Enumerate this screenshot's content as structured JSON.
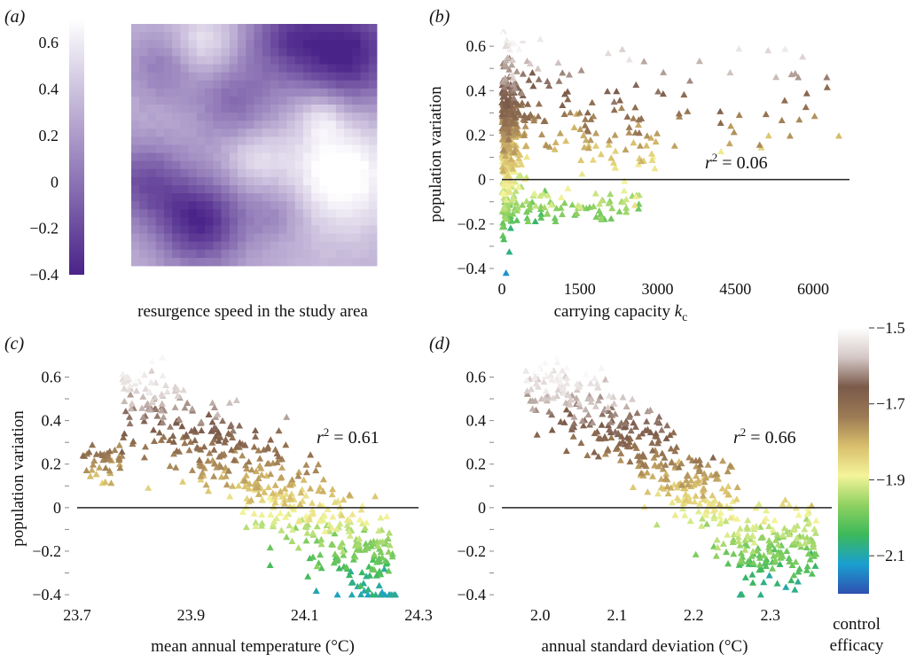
{
  "chart_data": [
    {
      "panel": "a",
      "panel_label": "(a)",
      "type": "heatmap",
      "xlabel": "resurgence speed in the study area",
      "colorbar": {
        "ticks": [
          "0.6",
          "0.4",
          "0.2",
          "0",
          "−0.2",
          "−0.4"
        ],
        "tick_values": [
          0.6,
          0.4,
          0.2,
          0,
          -0.2,
          -0.4
        ],
        "range": [
          -0.4,
          0.7
        ],
        "colors": [
          "#4a2389",
          "#ffffff"
        ]
      },
      "grid_size": 30,
      "centers": [
        {
          "cx": 0.88,
          "cy": 0.12,
          "s": 0.16,
          "v": -0.95
        },
        {
          "cx": 0.62,
          "cy": 0.05,
          "s": 0.12,
          "v": -0.55
        },
        {
          "cx": 0.28,
          "cy": 0.82,
          "s": 0.13,
          "v": -0.9
        },
        {
          "cx": 0.05,
          "cy": 0.65,
          "s": 0.12,
          "v": -0.6
        },
        {
          "cx": 0.42,
          "cy": 0.32,
          "s": 0.12,
          "v": -0.45
        },
        {
          "cx": 0.12,
          "cy": 0.18,
          "s": 0.1,
          "v": -0.35
        },
        {
          "cx": 0.6,
          "cy": 0.78,
          "s": 0.09,
          "v": -0.3
        },
        {
          "cx": 0.85,
          "cy": 0.62,
          "s": 0.16,
          "v": 0.6
        },
        {
          "cx": 0.78,
          "cy": 0.38,
          "s": 0.07,
          "v": 0.35
        },
        {
          "cx": 0.3,
          "cy": 0.08,
          "s": 0.09,
          "v": 0.35
        },
        {
          "cx": 0.5,
          "cy": 0.55,
          "s": 0.08,
          "v": 0.3
        }
      ]
    },
    {
      "panel": "b",
      "panel_label": "(b)",
      "type": "scatter",
      "xlabel": "carrying capacity",
      "xlabel_var": "k",
      "xlabel_sub": "c",
      "ylabel": "population variation",
      "xlim": [
        0,
        6700
      ],
      "ylim": [
        -0.42,
        0.72
      ],
      "xticks": [
        0,
        1500,
        3000,
        4500,
        6000
      ],
      "yticks": [
        -0.4,
        -0.2,
        0,
        0.2,
        0.4,
        0.6
      ],
      "hline": 0,
      "r2": "0.06",
      "marker": "triangle",
      "color_by": "control efficacy"
    },
    {
      "panel": "c",
      "panel_label": "(c)",
      "type": "scatter",
      "xlabel": "mean annual temperature (°C)",
      "ylabel": "population variation",
      "xlim": [
        23.7,
        24.3
      ],
      "ylim": [
        -0.42,
        0.72
      ],
      "xticks": [
        23.7,
        23.9,
        24.1,
        24.3
      ],
      "yticks": [
        -0.4,
        -0.2,
        0,
        0.2,
        0.4,
        0.6
      ],
      "hline": 0,
      "r2": "0.61",
      "marker": "triangle",
      "color_by": "control efficacy"
    },
    {
      "panel": "d",
      "panel_label": "(d)",
      "type": "scatter",
      "xlabel": "annual standard deviation (°C)",
      "ylabel": "",
      "xlim": [
        1.95,
        2.38
      ],
      "ylim": [
        -0.42,
        0.72
      ],
      "xticks": [
        2.0,
        2.1,
        2.2,
        2.3
      ],
      "yticks": [
        -0.4,
        -0.2,
        0,
        0.2,
        0.4,
        0.6
      ],
      "hline": 0,
      "r2": "0.66",
      "marker": "triangle",
      "color_by": "control efficacy"
    }
  ],
  "colorbar": {
    "label_line1": "control",
    "label_line2": "efficacy",
    "range": [
      -2.2,
      -1.5
    ],
    "ticks": [
      "−1.5",
      "−1.7",
      "−1.9",
      "−2.1"
    ],
    "tick_values": [
      -1.5,
      -1.7,
      -1.9,
      -2.1
    ],
    "colormap": [
      "#2f4fb0",
      "#1a9fd0",
      "#3cb95a",
      "#8fd161",
      "#f4f49a",
      "#d9bf6c",
      "#9c7a55",
      "#7a5a4a",
      "#d4c8c6",
      "#ffffff"
    ]
  },
  "r2_prefix": "r",
  "r2_sup": "2",
  "r2_eq": " = "
}
